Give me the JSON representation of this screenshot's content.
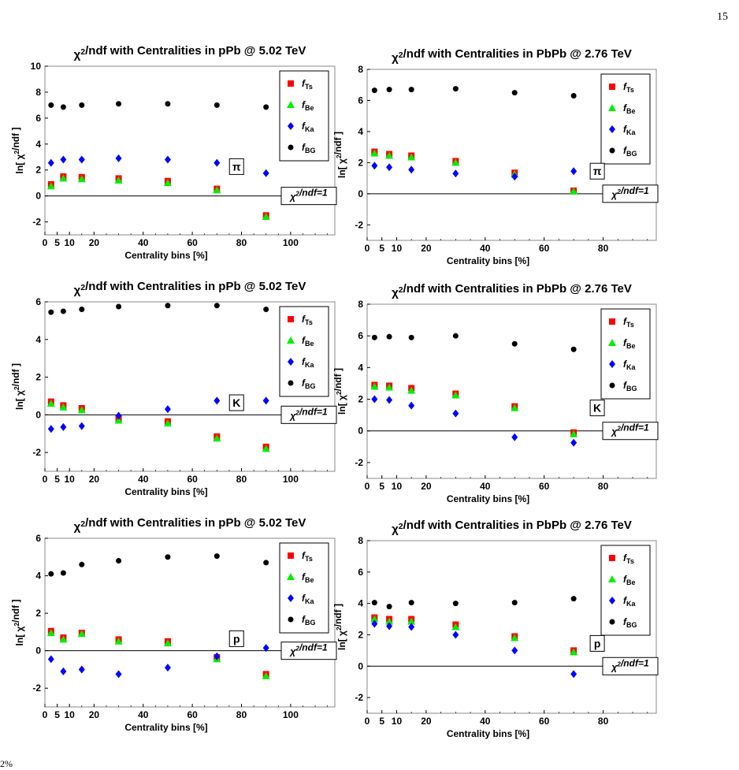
{
  "page": {
    "number": "15"
  },
  "footer": {
    "text": "2%"
  },
  "legend_items": [
    {
      "base": "f",
      "sub": "Ts",
      "color": "#ff0000",
      "marker": "square"
    },
    {
      "base": "f",
      "sub": "Be",
      "color": "#00ee00",
      "marker": "triangle"
    },
    {
      "base": "f",
      "sub": "Ka",
      "color": "#0000ff",
      "marker": "diamond"
    },
    {
      "base": "f",
      "sub": "BG",
      "color": "#000000",
      "marker": "circle"
    }
  ],
  "reference_label": "χ²/ndf=1",
  "chart_data": [
    {
      "type": "scatter",
      "title": "χ²/ndf with Centralities in pPb @ 5.02 TeV",
      "xlabel": "Centrality bins [%]",
      "ylabel": "ln[ χ²/ndf ]",
      "xlim": [
        0,
        118
      ],
      "ylim": [
        -3,
        10
      ],
      "xticks": [
        "0",
        "5",
        "10",
        "20",
        "40",
        "60",
        "80",
        "100"
      ],
      "yticks": [
        "10",
        "8",
        "6",
        "4",
        "2",
        "0",
        "-2"
      ],
      "annotation": "π",
      "legend": "top-right",
      "x": [
        2.5,
        7.5,
        15,
        30,
        50,
        70,
        90
      ],
      "series": [
        {
          "name": "f_Ts",
          "values": [
            0.9,
            1.5,
            1.45,
            1.35,
            1.15,
            0.55,
            -1.5
          ]
        },
        {
          "name": "f_Be",
          "values": [
            0.75,
            1.35,
            1.3,
            1.2,
            1.0,
            0.45,
            -1.6
          ]
        },
        {
          "name": "f_Ka",
          "values": [
            2.55,
            2.8,
            2.8,
            2.9,
            2.8,
            2.55,
            1.75
          ]
        },
        {
          "name": "f_BG",
          "values": [
            7.0,
            6.85,
            7.0,
            7.1,
            7.1,
            7.0,
            6.85
          ]
        }
      ]
    },
    {
      "type": "scatter",
      "title": "χ²/ndf with Centralities in PbPb @ 2.76 TeV",
      "xlabel": "Centrality bins [%]",
      "ylabel": "ln[ χ²/ndf ]",
      "xlim": [
        0,
        98
      ],
      "ylim": [
        -3,
        8
      ],
      "xticks": [
        "0",
        "5",
        "10",
        "20",
        "40",
        "60",
        "80"
      ],
      "yticks": [
        "8",
        "6",
        "4",
        "2",
        "0",
        "-2"
      ],
      "annotation": "π",
      "legend": "top-right",
      "x": [
        2.5,
        7.5,
        15,
        30,
        50,
        70
      ],
      "series": [
        {
          "name": "f_Ts",
          "values": [
            2.7,
            2.55,
            2.45,
            2.1,
            1.35,
            0.2
          ]
        },
        {
          "name": "f_Be",
          "values": [
            2.6,
            2.45,
            2.35,
            2.0,
            1.25,
            0.15
          ]
        },
        {
          "name": "f_Ka",
          "values": [
            1.8,
            1.7,
            1.55,
            1.3,
            1.1,
            1.45
          ]
        },
        {
          "name": "f_BG",
          "values": [
            6.65,
            6.7,
            6.7,
            6.75,
            6.5,
            6.3
          ]
        }
      ]
    },
    {
      "type": "scatter",
      "title": "χ²/ndf with Centralities in pPb @ 5.02 TeV",
      "xlabel": "Centrality bins [%]",
      "ylabel": "ln[ χ²/ndf ]",
      "xlim": [
        0,
        118
      ],
      "ylim": [
        -3,
        6
      ],
      "xticks": [
        "0",
        "5",
        "10",
        "20",
        "40",
        "60",
        "80",
        "100"
      ],
      "yticks": [
        "6",
        "4",
        "2",
        "0",
        "-2"
      ],
      "annotation": "K",
      "legend": "top-right",
      "x": [
        2.5,
        7.5,
        15,
        30,
        50,
        70,
        90
      ],
      "series": [
        {
          "name": "f_Ts",
          "values": [
            0.7,
            0.5,
            0.35,
            -0.2,
            -0.35,
            -1.15,
            -1.7
          ]
        },
        {
          "name": "f_Be",
          "values": [
            0.6,
            0.4,
            0.25,
            -0.3,
            -0.45,
            -1.25,
            -1.8
          ]
        },
        {
          "name": "f_Ka",
          "values": [
            -0.75,
            -0.65,
            -0.6,
            -0.05,
            0.3,
            0.75,
            0.75
          ]
        },
        {
          "name": "f_BG",
          "values": [
            5.45,
            5.5,
            5.6,
            5.75,
            5.8,
            5.8,
            5.6
          ]
        }
      ]
    },
    {
      "type": "scatter",
      "title": "χ²/ndf with Centralities in PbPb @ 2.76 TeV",
      "xlabel": "Centrality bins [%]",
      "ylabel": "ln[ χ²/ndf ]",
      "xlim": [
        0,
        98
      ],
      "ylim": [
        -3,
        8
      ],
      "xticks": [
        "0",
        "5",
        "10",
        "20",
        "40",
        "60",
        "80"
      ],
      "yticks": [
        "8",
        "6",
        "4",
        "2",
        "0",
        "-2"
      ],
      "annotation": "K",
      "legend": "top-right",
      "x": [
        2.5,
        7.5,
        15,
        30,
        50,
        70
      ],
      "series": [
        {
          "name": "f_Ts",
          "values": [
            2.9,
            2.85,
            2.7,
            2.35,
            1.55,
            -0.1
          ]
        },
        {
          "name": "f_Be",
          "values": [
            2.8,
            2.75,
            2.55,
            2.25,
            1.45,
            -0.2
          ]
        },
        {
          "name": "f_Ka",
          "values": [
            2.0,
            1.95,
            1.6,
            1.1,
            -0.4,
            -0.75
          ]
        },
        {
          "name": "f_BG",
          "values": [
            5.9,
            5.95,
            5.9,
            6.0,
            5.5,
            5.15
          ]
        }
      ]
    },
    {
      "type": "scatter",
      "title": "χ²/ndf with Centralities in pPb @ 5.02 TeV",
      "xlabel": "Centrality bins [%]",
      "ylabel": "ln[ χ²/ndf ]",
      "xlim": [
        0,
        118
      ],
      "ylim": [
        -3,
        6
      ],
      "xticks": [
        "0",
        "5",
        "10",
        "20",
        "40",
        "60",
        "80",
        "100"
      ],
      "yticks": [
        "6",
        "4",
        "2",
        "0",
        "-2"
      ],
      "annotation": "p",
      "legend": "top-right",
      "x": [
        2.5,
        7.5,
        15,
        30,
        50,
        70,
        90
      ],
      "series": [
        {
          "name": "f_Ts",
          "values": [
            1.05,
            0.7,
            0.95,
            0.6,
            0.5,
            -0.35,
            -1.25
          ]
        },
        {
          "name": "f_Be",
          "values": [
            0.95,
            0.6,
            0.9,
            0.5,
            0.4,
            -0.45,
            -1.35
          ]
        },
        {
          "name": "f_Ka",
          "values": [
            -0.45,
            -1.1,
            -1.0,
            -1.25,
            -0.9,
            -0.3,
            0.15
          ]
        },
        {
          "name": "f_BG",
          "values": [
            4.1,
            4.15,
            4.6,
            4.8,
            5.0,
            5.05,
            4.7
          ]
        }
      ]
    },
    {
      "type": "scatter",
      "title": "χ²/ndf with Centralities in PbPb @ 2.76 TeV",
      "xlabel": "Centrality bins [%]",
      "ylabel": "ln[ χ²/ndf ]",
      "xlim": [
        0,
        98
      ],
      "ylim": [
        -3,
        8
      ],
      "xticks": [
        "0",
        "5",
        "10",
        "20",
        "40",
        "60",
        "80"
      ],
      "yticks": [
        "8",
        "6",
        "4",
        "2",
        "0",
        "-2"
      ],
      "annotation": "p",
      "legend": "top-right",
      "x": [
        2.5,
        7.5,
        15,
        30,
        50,
        70
      ],
      "series": [
        {
          "name": "f_Ts",
          "values": [
            3.1,
            3.0,
            3.0,
            2.65,
            1.9,
            1.0
          ]
        },
        {
          "name": "f_Be",
          "values": [
            3.0,
            2.85,
            2.85,
            2.5,
            1.8,
            0.9
          ]
        },
        {
          "name": "f_Ka",
          "values": [
            2.7,
            2.55,
            2.5,
            2.0,
            1.0,
            -0.5
          ]
        },
        {
          "name": "f_BG",
          "values": [
            4.05,
            3.8,
            4.05,
            4.0,
            4.05,
            4.3
          ]
        }
      ]
    }
  ]
}
